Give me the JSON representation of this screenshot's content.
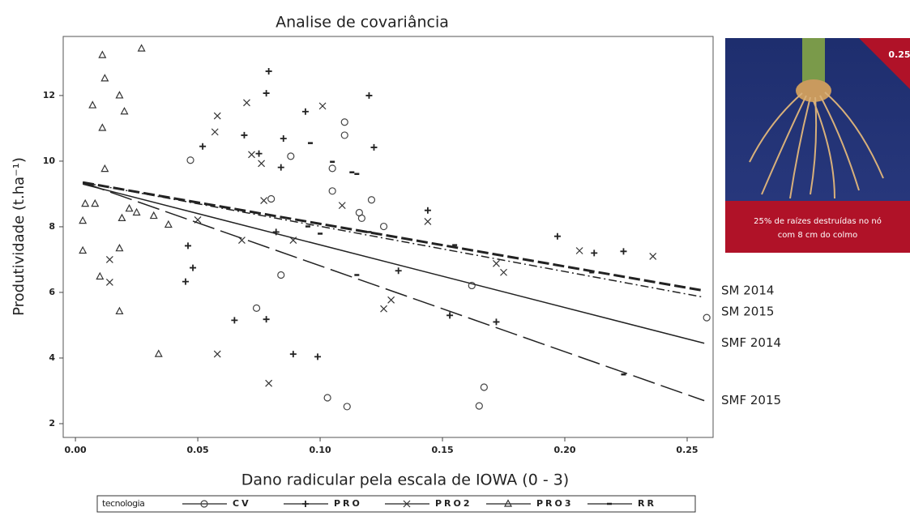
{
  "chart_data": {
    "type": "scatter",
    "title": "Analise de covariância",
    "x_label": "Dano radicular pela escala de IOWA (0 - 3)",
    "y_label": "Produtividade (t.ha⁻¹)",
    "xlim": [
      -0.005,
      0.2606
    ],
    "ylim": [
      1.58,
      13.8
    ],
    "xticks": [
      {
        "value": 0,
        "label": "0.00"
      },
      {
        "value": 0.05,
        "label": "0.05"
      },
      {
        "value": 0.1,
        "label": "0.10"
      },
      {
        "value": 0.15,
        "label": "0.15"
      },
      {
        "value": 0.2,
        "label": "0.20"
      },
      {
        "value": 0.25,
        "label": "0.25"
      }
    ],
    "yticks": [
      2,
      4,
      6,
      8,
      10,
      12
    ],
    "legend_title": "tecnologia",
    "series": [
      {
        "name": "CV",
        "marker": "circle",
        "color": "#444444",
        "x": [
          0.047,
          0.088,
          0.08,
          0.084,
          0.074,
          0.11,
          0.11,
          0.105,
          0.105,
          0.117,
          0.121,
          0.126,
          0.162,
          0.258,
          0.103,
          0.111,
          0.167,
          0.165,
          0.116
        ],
        "values": [
          10.03,
          10.15,
          8.85,
          6.53,
          5.52,
          11.19,
          10.79,
          9.09,
          9.78,
          8.26,
          8.82,
          8.01,
          6.21,
          5.23,
          2.79,
          2.52,
          3.11,
          2.54,
          8.43
        ]
      },
      {
        "name": "PRO",
        "marker": "plus",
        "color": "#222222",
        "x": [
          0.052,
          0.069,
          0.079,
          0.078,
          0.085,
          0.084,
          0.075,
          0.094,
          0.12,
          0.122,
          0.046,
          0.048,
          0.045,
          0.065,
          0.078,
          0.089,
          0.099,
          0.153,
          0.172,
          0.197,
          0.212,
          0.224,
          0.144,
          0.132,
          0.082
        ],
        "values": [
          10.45,
          10.79,
          12.74,
          12.07,
          10.69,
          9.81,
          10.23,
          11.51,
          12.0,
          10.42,
          7.42,
          6.75,
          6.33,
          5.15,
          5.18,
          4.12,
          4.04,
          5.3,
          5.1,
          7.71,
          7.2,
          7.25,
          8.5,
          6.66,
          7.84
        ]
      },
      {
        "name": "PRO2",
        "marker": "cross",
        "color": "#333333",
        "x": [
          0.058,
          0.07,
          0.101,
          0.072,
          0.076,
          0.057,
          0.05,
          0.077,
          0.068,
          0.089,
          0.109,
          0.126,
          0.129,
          0.144,
          0.172,
          0.175,
          0.206,
          0.236,
          0.058,
          0.079,
          0.014,
          0.014
        ],
        "values": [
          11.38,
          11.78,
          11.68,
          10.2,
          9.93,
          10.89,
          8.21,
          8.8,
          7.59,
          7.59,
          8.65,
          5.5,
          5.77,
          8.16,
          6.88,
          6.61,
          7.27,
          7.1,
          4.12,
          3.23,
          7.0,
          6.31
        ]
      },
      {
        "name": "PRO3",
        "marker": "triangle",
        "color": "#333333",
        "x": [
          0.011,
          0.027,
          0.007,
          0.012,
          0.018,
          0.02,
          0.011,
          0.012,
          0.004,
          0.008,
          0.003,
          0.003,
          0.01,
          0.018,
          0.018,
          0.022,
          0.025,
          0.032,
          0.038,
          0.034,
          0.019
        ],
        "values": [
          13.23,
          13.43,
          11.7,
          12.52,
          12.0,
          11.51,
          11.01,
          9.76,
          8.7,
          8.7,
          8.18,
          7.27,
          6.48,
          7.34,
          5.42,
          8.55,
          8.43,
          8.33,
          8.06,
          4.12,
          8.26
        ]
      },
      {
        "name": "RR",
        "marker": "dot",
        "color": "#222222",
        "x": [
          0.105,
          0.096,
          0.113,
          0.115,
          0.12,
          0.115,
          0.224,
          0.211,
          0.155,
          0.095,
          0.1
        ],
        "values": [
          9.98,
          10.55,
          9.66,
          9.61,
          7.84,
          6.53,
          3.5,
          6.61,
          7.44,
          8.01,
          7.79
        ]
      }
    ],
    "lines": [
      {
        "name": "SM 2014",
        "dash": "14 5",
        "width": 3,
        "x": [
          0.003,
          0.257
        ],
        "values": [
          9.35,
          6.05
        ]
      },
      {
        "name": "SM 2015",
        "dash": "10 4 2 4",
        "width": 1.5,
        "x": [
          0.003,
          0.257
        ],
        "values": [
          9.35,
          5.85
        ]
      },
      {
        "name": "SMF 2014",
        "dash": "none",
        "width": 1.5,
        "x": [
          0.003,
          0.257
        ],
        "values": [
          9.3,
          4.45
        ]
      },
      {
        "name": "SMF 2015",
        "dash": "28 8",
        "width": 1.5,
        "x": [
          0.003,
          0.257
        ],
        "values": [
          9.35,
          2.7
        ]
      }
    ]
  },
  "inset": {
    "badge": "0.25",
    "caption_line1": "25% de raízes destruídas no nó",
    "caption_line2": "com 8 cm do colmo"
  }
}
